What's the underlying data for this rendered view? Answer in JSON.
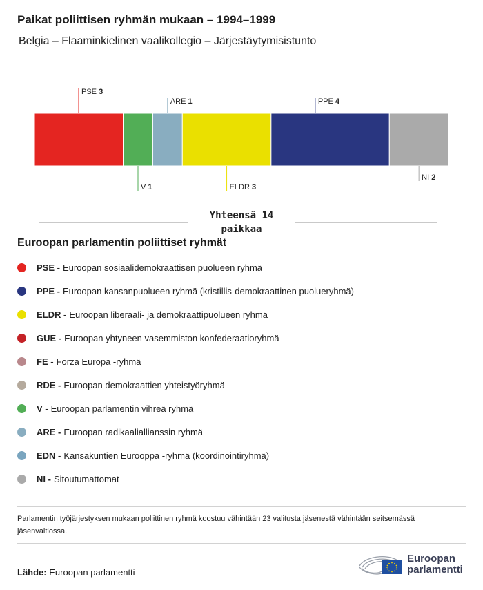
{
  "header": {
    "title": "Paikat poliittisen ryhmän mukaan – 1994–1999",
    "subtitle": "Belgia – Flaaminkielinen vaalikollegio – Järjestäytymisistunto"
  },
  "chart_data": {
    "type": "bar",
    "stacked": true,
    "orientation": "horizontal",
    "categories": [
      "PSE",
      "V",
      "ARE",
      "ELDR",
      "PPE",
      "NI"
    ],
    "values": [
      3,
      1,
      1,
      3,
      4,
      2
    ],
    "colors": [
      "#e42521",
      "#52ae56",
      "#89adc0",
      "#eae000",
      "#293680",
      "#aaaaaa"
    ],
    "label_side": [
      "top",
      "bottom",
      "top",
      "bottom",
      "top",
      "bottom"
    ],
    "total": 14
  },
  "total_label": "Yhteensä 14 paikkaa",
  "legend": {
    "title": "Euroopan parlamentin poliittiset ryhmät",
    "items": [
      {
        "abbr": "PSE -",
        "text": "Euroopan sosiaalidemokraattisen puolueen ryhmä",
        "color": "#e42521"
      },
      {
        "abbr": "PPE -",
        "text": "Euroopan kansanpuolueen ryhmä (kristillis-demokraattinen puolueryhmä)",
        "color": "#293680"
      },
      {
        "abbr": "ELDR -",
        "text": "Euroopan liberaali- ja demokraattipuolueen ryhmä",
        "color": "#eae000"
      },
      {
        "abbr": "GUE -",
        "text": "Euroopan yhtyneen vasemmiston konfederaatioryhmä",
        "color": "#c42227"
      },
      {
        "abbr": "FE -",
        "text": "Forza Europa -ryhmä",
        "color": "#b9888c"
      },
      {
        "abbr": "RDE -",
        "text": "Euroopan demokraattien yhteistyöryhmä",
        "color": "#b5aa9d"
      },
      {
        "abbr": "V -",
        "text": "Euroopan parlamentin vihreä ryhmä",
        "color": "#52ae56"
      },
      {
        "abbr": "ARE -",
        "text": "Euroopan radikaaliallianssin ryhmä",
        "color": "#89adc0"
      },
      {
        "abbr": "EDN -",
        "text": "Kansakuntien Eurooppa -ryhmä (koordinointiryhmä)",
        "color": "#7aa5bf"
      },
      {
        "abbr": "NI -",
        "text": "Sitoutumattomat",
        "color": "#aaaaaa"
      }
    ]
  },
  "footer": {
    "note": "Parlamentin työjärjestyksen mukaan poliittinen ryhmä koostuu vähintään 23 valitusta jäsenestä vähintään seitsemässä jäsenvaltiossa.",
    "source_label": "Lähde:",
    "source_value": "Euroopan parlamentti",
    "logo_line1": "Euroopan",
    "logo_line2": "parlamentti"
  }
}
